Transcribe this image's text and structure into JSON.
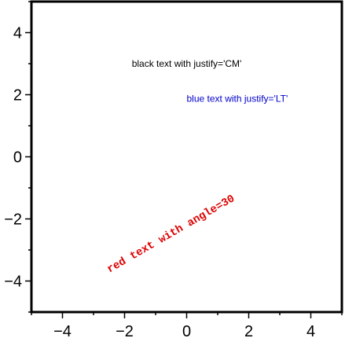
{
  "chart_data": {
    "type": "scatter",
    "title": "",
    "xlabel": "",
    "ylabel": "",
    "xlim": [
      -5,
      5
    ],
    "ylim": [
      -5,
      5
    ],
    "grid": false,
    "x_ticks": [
      -4,
      -2,
      0,
      2,
      4
    ],
    "y_ticks": [
      -4,
      -2,
      0,
      2,
      4
    ],
    "x_tick_labels": [
      "−4",
      "−2",
      "0",
      "2",
      "4"
    ],
    "y_tick_labels": [
      "−4",
      "−2",
      "0",
      "2",
      "4"
    ],
    "minor_tick_step": 1,
    "annotations": [
      {
        "text": "black text with justify='CM'",
        "x": 0,
        "y": 3,
        "justify": "CM",
        "color": "#000000",
        "angle": 0,
        "font": "sans"
      },
      {
        "text": "blue text with justify='LT'",
        "x": 0,
        "y": 2,
        "justify": "LT",
        "color": "#0000cc",
        "angle": 0,
        "font": "sans"
      },
      {
        "text": "red text with angle=30",
        "x": -0.5,
        "y": -2.5,
        "justify": "CM",
        "color": "#dd0000",
        "angle": 30,
        "font": "mono"
      }
    ]
  }
}
